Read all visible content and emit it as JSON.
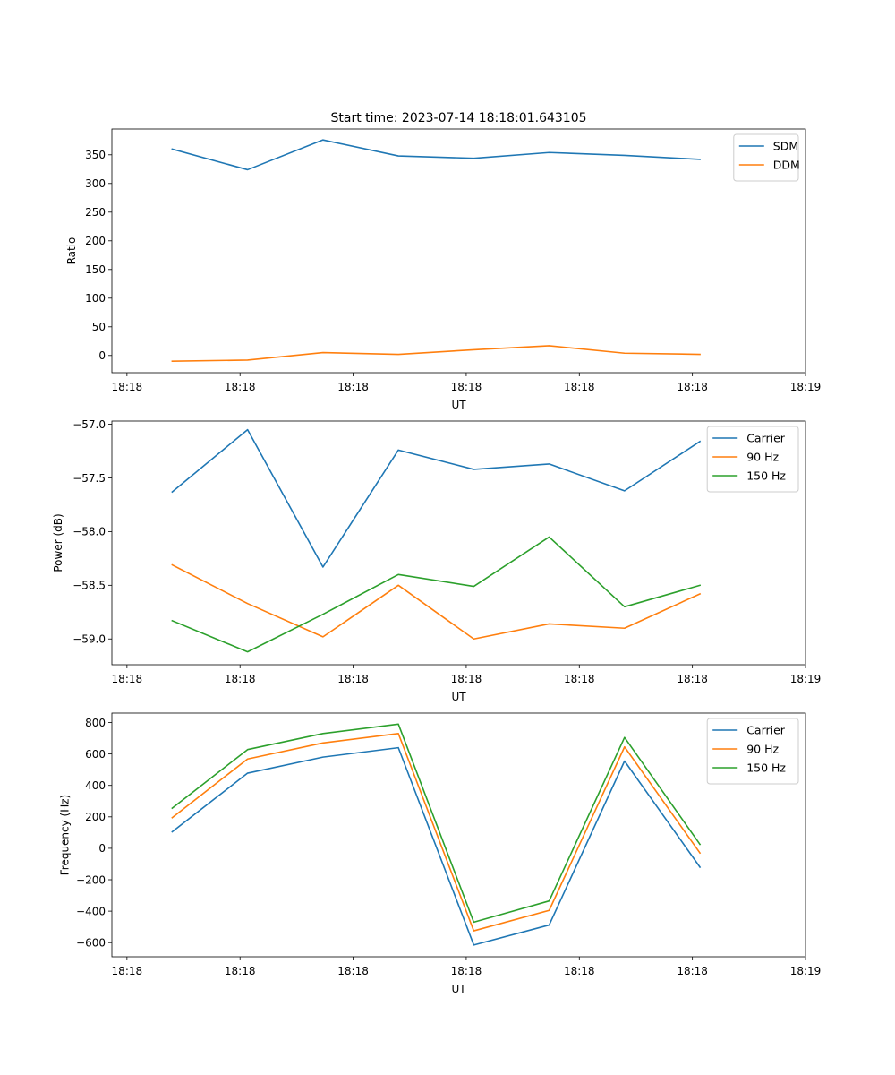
{
  "figure_title": "Start time: 2023-07-14 18:18:01.643105",
  "colors": {
    "c0": "#1f77b4",
    "c1": "#ff7f0e",
    "c2": "#2ca02c"
  },
  "chart_data": [
    {
      "type": "line",
      "title": "Start time: 2023-07-14 18:18:01.643105",
      "xlabel": "UT",
      "ylabel": "Ratio",
      "x": [
        1,
        2,
        3,
        4,
        5,
        6,
        7,
        8
      ],
      "xlim": [
        0.2,
        9.4
      ],
      "xticks": [
        0.4,
        1.9,
        3.4,
        4.9,
        6.4,
        7.9,
        9.4
      ],
      "xtick_labels": [
        "18:18",
        "18:18",
        "18:18",
        "18:18",
        "18:18",
        "18:18",
        "18:19"
      ],
      "ylim": [
        -30,
        395
      ],
      "yticks": [
        0,
        50,
        100,
        150,
        200,
        250,
        300,
        350
      ],
      "ytick_labels": [
        "0",
        "50",
        "100",
        "150",
        "200",
        "250",
        "300",
        "350"
      ],
      "legend_position": "top-right",
      "series": [
        {
          "name": "SDM",
          "color": "#1f77b4",
          "values": [
            360,
            324,
            376,
            348,
            344,
            354,
            349,
            342
          ]
        },
        {
          "name": "DDM",
          "color": "#ff7f0e",
          "values": [
            -10,
            -8,
            5,
            2,
            10,
            17,
            4,
            2
          ]
        }
      ]
    },
    {
      "type": "line",
      "title": "",
      "xlabel": "UT",
      "ylabel": "Power (dB)",
      "x": [
        1,
        2,
        3,
        4,
        5,
        6,
        7,
        8
      ],
      "xlim": [
        0.2,
        9.4
      ],
      "xticks": [
        0.4,
        1.9,
        3.4,
        4.9,
        6.4,
        7.9,
        9.4
      ],
      "xtick_labels": [
        "18:18",
        "18:18",
        "18:18",
        "18:18",
        "18:18",
        "18:18",
        "18:19"
      ],
      "ylim": [
        -59.24,
        -56.97
      ],
      "yticks": [
        -59.0,
        -58.5,
        -58.0,
        -57.5,
        -57.0
      ],
      "ytick_labels": [
        "−59.0",
        "−58.5",
        "−58.0",
        "−57.5",
        "−57.0"
      ],
      "legend_position": "top-right",
      "series": [
        {
          "name": "Carrier",
          "color": "#1f77b4",
          "values": [
            -57.63,
            -57.05,
            -58.33,
            -57.24,
            -57.42,
            -57.37,
            -57.62,
            -57.16
          ]
        },
        {
          "name": "90 Hz",
          "color": "#ff7f0e",
          "values": [
            -58.31,
            -58.67,
            -58.98,
            -58.5,
            -59.0,
            -58.86,
            -58.9,
            -58.58
          ]
        },
        {
          "name": "150 Hz",
          "color": "#2ca02c",
          "values": [
            -58.83,
            -59.12,
            -58.77,
            -58.4,
            -58.51,
            -58.05,
            -58.7,
            -58.5
          ]
        }
      ]
    },
    {
      "type": "line",
      "title": "",
      "xlabel": "UT",
      "ylabel": "Frequency (Hz)",
      "x": [
        1,
        2,
        3,
        4,
        5,
        6,
        7,
        8
      ],
      "xlim": [
        0.2,
        9.4
      ],
      "xticks": [
        0.4,
        1.9,
        3.4,
        4.9,
        6.4,
        7.9,
        9.4
      ],
      "xtick_labels": [
        "18:18",
        "18:18",
        "18:18",
        "18:18",
        "18:18",
        "18:18",
        "18:19"
      ],
      "ylim": [
        -690,
        860
      ],
      "yticks": [
        -600,
        -400,
        -200,
        0,
        200,
        400,
        600,
        800
      ],
      "ytick_labels": [
        "−600",
        "−400",
        "−200",
        "0",
        "200",
        "400",
        "600",
        "800"
      ],
      "legend_position": "top-right",
      "series": [
        {
          "name": "Carrier",
          "color": "#1f77b4",
          "values": [
            105,
            478,
            580,
            640,
            -615,
            -488,
            555,
            -120
          ]
        },
        {
          "name": "90 Hz",
          "color": "#ff7f0e",
          "values": [
            195,
            568,
            670,
            730,
            -525,
            -395,
            645,
            -30
          ]
        },
        {
          "name": "150 Hz",
          "color": "#2ca02c",
          "values": [
            255,
            628,
            730,
            790,
            -470,
            -335,
            705,
            25
          ]
        }
      ]
    }
  ]
}
